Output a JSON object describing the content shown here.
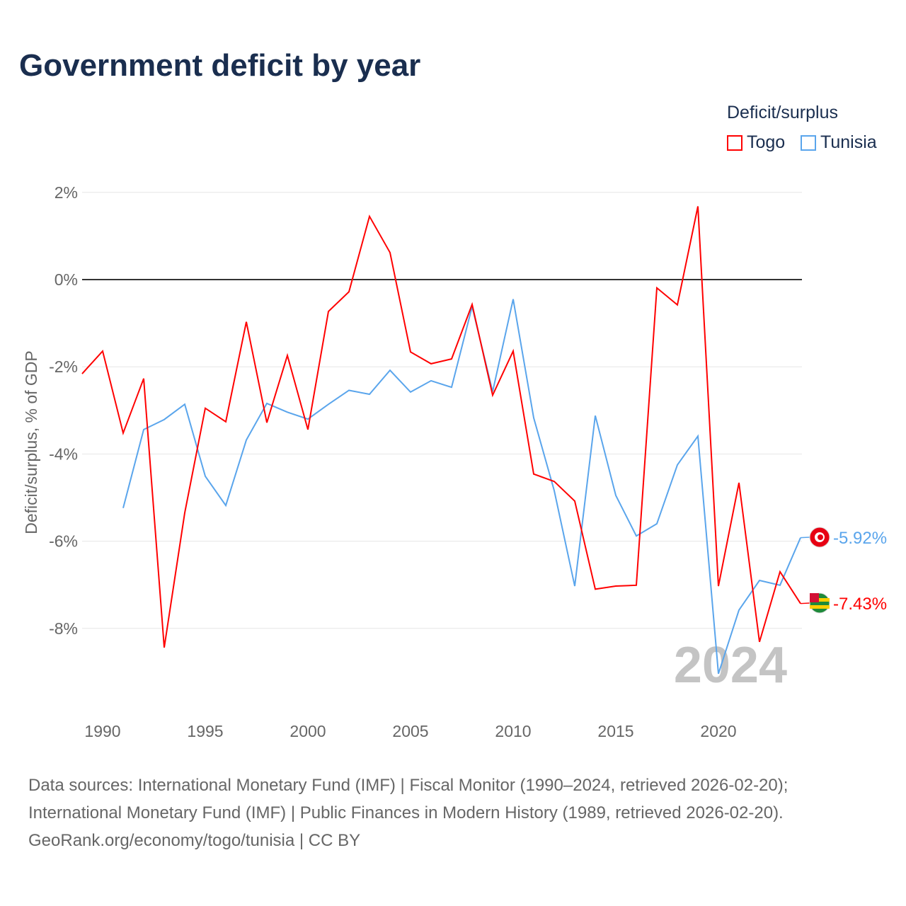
{
  "title": "Government deficit by year",
  "legend": {
    "title": "Deficit/surplus",
    "items": [
      {
        "name": "Togo",
        "color": "#ff0000"
      },
      {
        "name": "Tunisia",
        "color": "#5aa5ec"
      }
    ]
  },
  "year_label": "2024",
  "sources": [
    "Data sources: International Monetary Fund (IMF) | Fiscal Monitor (1990–2024, retrieved 2026-02-20);",
    "International Monetary Fund (IMF) | Public Finances in Modern History (1989, retrieved 2026-02-20).",
    "GeoRank.org/economy/togo/tunisia | CC BY"
  ],
  "chart_data": {
    "type": "line",
    "title": "Government deficit by year",
    "ylabel": "Deficit/surplus, % of GDP",
    "xlabel": "",
    "xlim": [
      1989,
      2024
    ],
    "ylim": [
      -10,
      2.5
    ],
    "x_ticks": [
      1990,
      1995,
      2000,
      2005,
      2010,
      2015,
      2020
    ],
    "y_ticks": [
      {
        "v": 2,
        "l": "2%"
      },
      {
        "v": 0,
        "l": "0%"
      },
      {
        "v": -2,
        "l": "-2%"
      },
      {
        "v": -4,
        "l": "-4%"
      },
      {
        "v": -6,
        "l": "-6%"
      },
      {
        "v": -8,
        "l": "-8%"
      }
    ],
    "series": [
      {
        "name": "Togo",
        "color": "#ff0000",
        "end_label": "-7.43%",
        "start": 1989,
        "values": [
          -2.16,
          -1.64,
          -3.52,
          -2.27,
          -8.44,
          -5.35,
          -2.95,
          -3.26,
          -0.97,
          -3.28,
          -1.74,
          -3.44,
          -0.73,
          -0.28,
          1.45,
          0.62,
          -1.66,
          -1.93,
          -1.82,
          -0.57,
          -2.65,
          -1.64,
          -4.46,
          -4.63,
          -5.08,
          -7.1,
          -7.03,
          -7.01,
          -0.19,
          -0.58,
          1.68,
          -7.03,
          -4.66,
          -8.31,
          -6.7,
          -7.43
        ]
      },
      {
        "name": "Tunisia",
        "color": "#5aa5ec",
        "end_label": "-5.92%",
        "start": 1991,
        "values": [
          -5.24,
          -3.44,
          -3.21,
          -2.86,
          -4.51,
          -5.18,
          -3.68,
          -2.84,
          -3.04,
          -3.2,
          -2.86,
          -2.54,
          -2.63,
          -2.08,
          -2.58,
          -2.32,
          -2.47,
          -0.62,
          -2.57,
          -0.45,
          -3.17,
          -4.84,
          -7.03,
          -3.12,
          -4.95,
          -5.88,
          -5.6,
          -4.25,
          -3.59,
          -9.04,
          -7.58,
          -6.9,
          -7.01,
          -5.92
        ]
      }
    ]
  }
}
